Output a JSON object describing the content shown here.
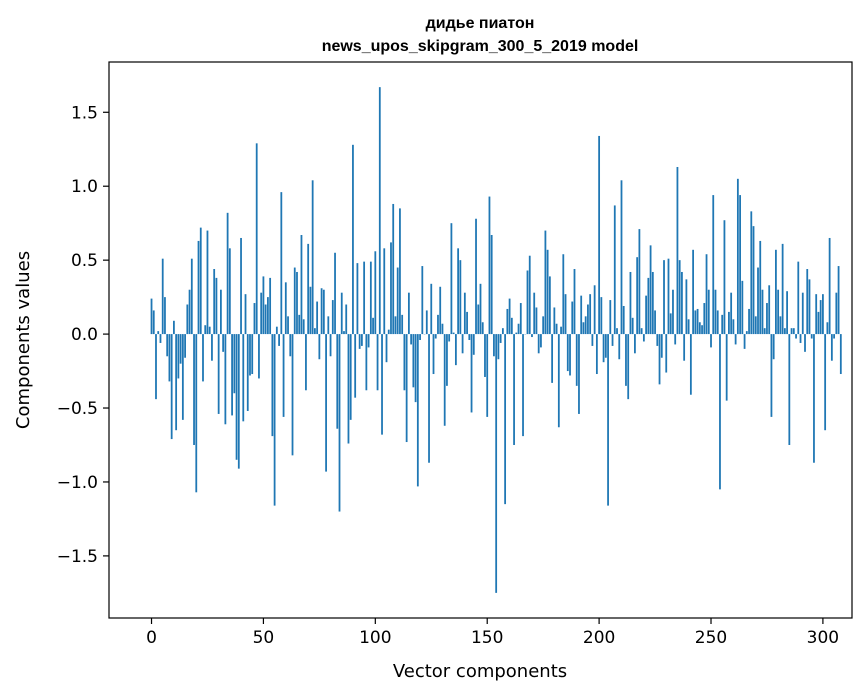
{
  "chart_data": {
    "type": "bar",
    "title": "дидье пиатон",
    "subtitle": "news_upos_skipgram_300_5_2019 model",
    "xlabel": "Vector components",
    "ylabel": "Components values",
    "xlim": [
      -19,
      313
    ],
    "ylim": [
      -1.92,
      1.84
    ],
    "xticks": [
      0,
      50,
      100,
      150,
      200,
      250,
      300
    ],
    "xtick_labels": [
      "0",
      "50",
      "100",
      "150",
      "200",
      "250",
      "300"
    ],
    "yticks": [
      -1.5,
      -1.0,
      -0.5,
      0.0,
      0.5,
      1.0,
      1.5
    ],
    "ytick_labels": [
      "−1.5",
      "−1.0",
      "−0.5",
      "0.0",
      "0.5",
      "1.0",
      "1.5"
    ],
    "grid": false,
    "bar_color": "#1f77b4",
    "series": [
      {
        "values": [
          0.24,
          0.16,
          -0.44,
          0.02,
          -0.06,
          0.51,
          0.25,
          -0.15,
          -0.32,
          -0.71,
          0.09,
          -0.65,
          -0.3,
          -0.2,
          -0.58,
          -0.16,
          0.2,
          0.3,
          0.51,
          -0.75,
          -1.07,
          0.63,
          0.72,
          -0.32,
          0.06,
          0.7,
          0.05,
          -0.18,
          0.44,
          0.38,
          -0.54,
          0.3,
          -0.12,
          -0.61,
          0.82,
          0.58,
          -0.55,
          -0.4,
          -0.85,
          -0.91,
          0.65,
          -0.59,
          0.27,
          -0.52,
          -0.28,
          -0.27,
          0.21,
          1.29,
          -0.3,
          0.28,
          0.39,
          0.2,
          0.25,
          0.38,
          -0.69,
          -1.16,
          0.05,
          -0.08,
          0.96,
          -0.56,
          0.35,
          0.12,
          -0.15,
          -0.82,
          0.45,
          0.42,
          0.13,
          0.67,
          0.1,
          -0.38,
          0.61,
          0.32,
          1.04,
          0.04,
          0.22,
          -0.17,
          0.31,
          0.3,
          -0.93,
          0.12,
          -0.15,
          0.23,
          0.55,
          -0.64,
          -1.2,
          0.28,
          0.02,
          0.2,
          -0.74,
          -0.58,
          1.28,
          -0.43,
          0.48,
          -0.1,
          -0.08,
          0.49,
          -0.38,
          -0.09,
          0.49,
          0.11,
          0.56,
          -0.38,
          1.67,
          -0.68,
          0.58,
          -0.19,
          0.03,
          0.62,
          0.88,
          0.12,
          0.45,
          0.85,
          0.13,
          -0.38,
          -0.73,
          0.28,
          -0.07,
          -0.36,
          -0.46,
          -1.03,
          -0.04,
          0.46,
          0.0,
          0.16,
          -0.87,
          0.34,
          -0.27,
          -0.03,
          0.13,
          0.32,
          0.07,
          -0.62,
          -0.35,
          -0.05,
          0.75,
          0.01,
          -0.21,
          0.58,
          0.5,
          -0.13,
          0.28,
          0.15,
          -0.04,
          -0.53,
          -0.14,
          0.78,
          0.2,
          0.34,
          0.08,
          -0.29,
          -0.56,
          0.93,
          0.67,
          -0.15,
          -1.75,
          -0.17,
          -0.06,
          0.04,
          -1.15,
          0.17,
          0.24,
          0.11,
          -0.75,
          0.01,
          0.07,
          0.21,
          -0.69,
          0.0,
          0.43,
          0.53,
          -0.02,
          0.28,
          0.18,
          -0.13,
          -0.09,
          0.12,
          0.7,
          0.57,
          0.39,
          -0.33,
          0.18,
          0.07,
          -0.63,
          0.05,
          0.54,
          0.27,
          -0.25,
          -0.28,
          0.22,
          0.44,
          -0.35,
          -0.54,
          0.26,
          0.08,
          0.12,
          0.2,
          0.27,
          -0.08,
          0.33,
          -0.27,
          1.34,
          0.25,
          -0.19,
          -0.16,
          -1.16,
          0.23,
          -0.08,
          0.87,
          0.04,
          -0.17,
          1.04,
          0.19,
          -0.35,
          -0.44,
          0.42,
          0.11,
          -0.13,
          0.52,
          0.71,
          0.04,
          -0.05,
          0.26,
          0.38,
          0.6,
          0.42,
          0.16,
          -0.08,
          -0.34,
          -0.16,
          0.5,
          -0.26,
          0.51,
          0.14,
          0.3,
          -0.07,
          1.13,
          0.5,
          0.42,
          -0.18,
          0.37,
          0.1,
          -0.41,
          0.57,
          0.16,
          0.17,
          0.08,
          0.06,
          0.21,
          0.54,
          0.3,
          -0.09,
          0.94,
          0.3,
          0.16,
          -1.05,
          0.13,
          0.77,
          -0.45,
          0.15,
          0.28,
          0.1,
          -0.07,
          1.05,
          0.94,
          0.36,
          -0.1,
          0.02,
          0.17,
          0.83,
          0.73,
          0.12,
          0.45,
          0.63,
          0.3,
          0.04,
          0.21,
          0.33,
          -0.56,
          -0.17,
          0.57,
          0.3,
          0.12,
          0.61,
          0.04,
          0.29,
          -0.75,
          0.04,
          0.04,
          -0.03,
          0.49,
          -0.06,
          0.28,
          -0.12,
          0.44,
          0.37,
          -0.03,
          -0.87,
          0.27,
          0.15,
          0.23,
          0.27,
          -0.65,
          0.08,
          0.65,
          -0.18,
          -0.03,
          0.28,
          0.46,
          -0.27
        ]
      }
    ]
  }
}
